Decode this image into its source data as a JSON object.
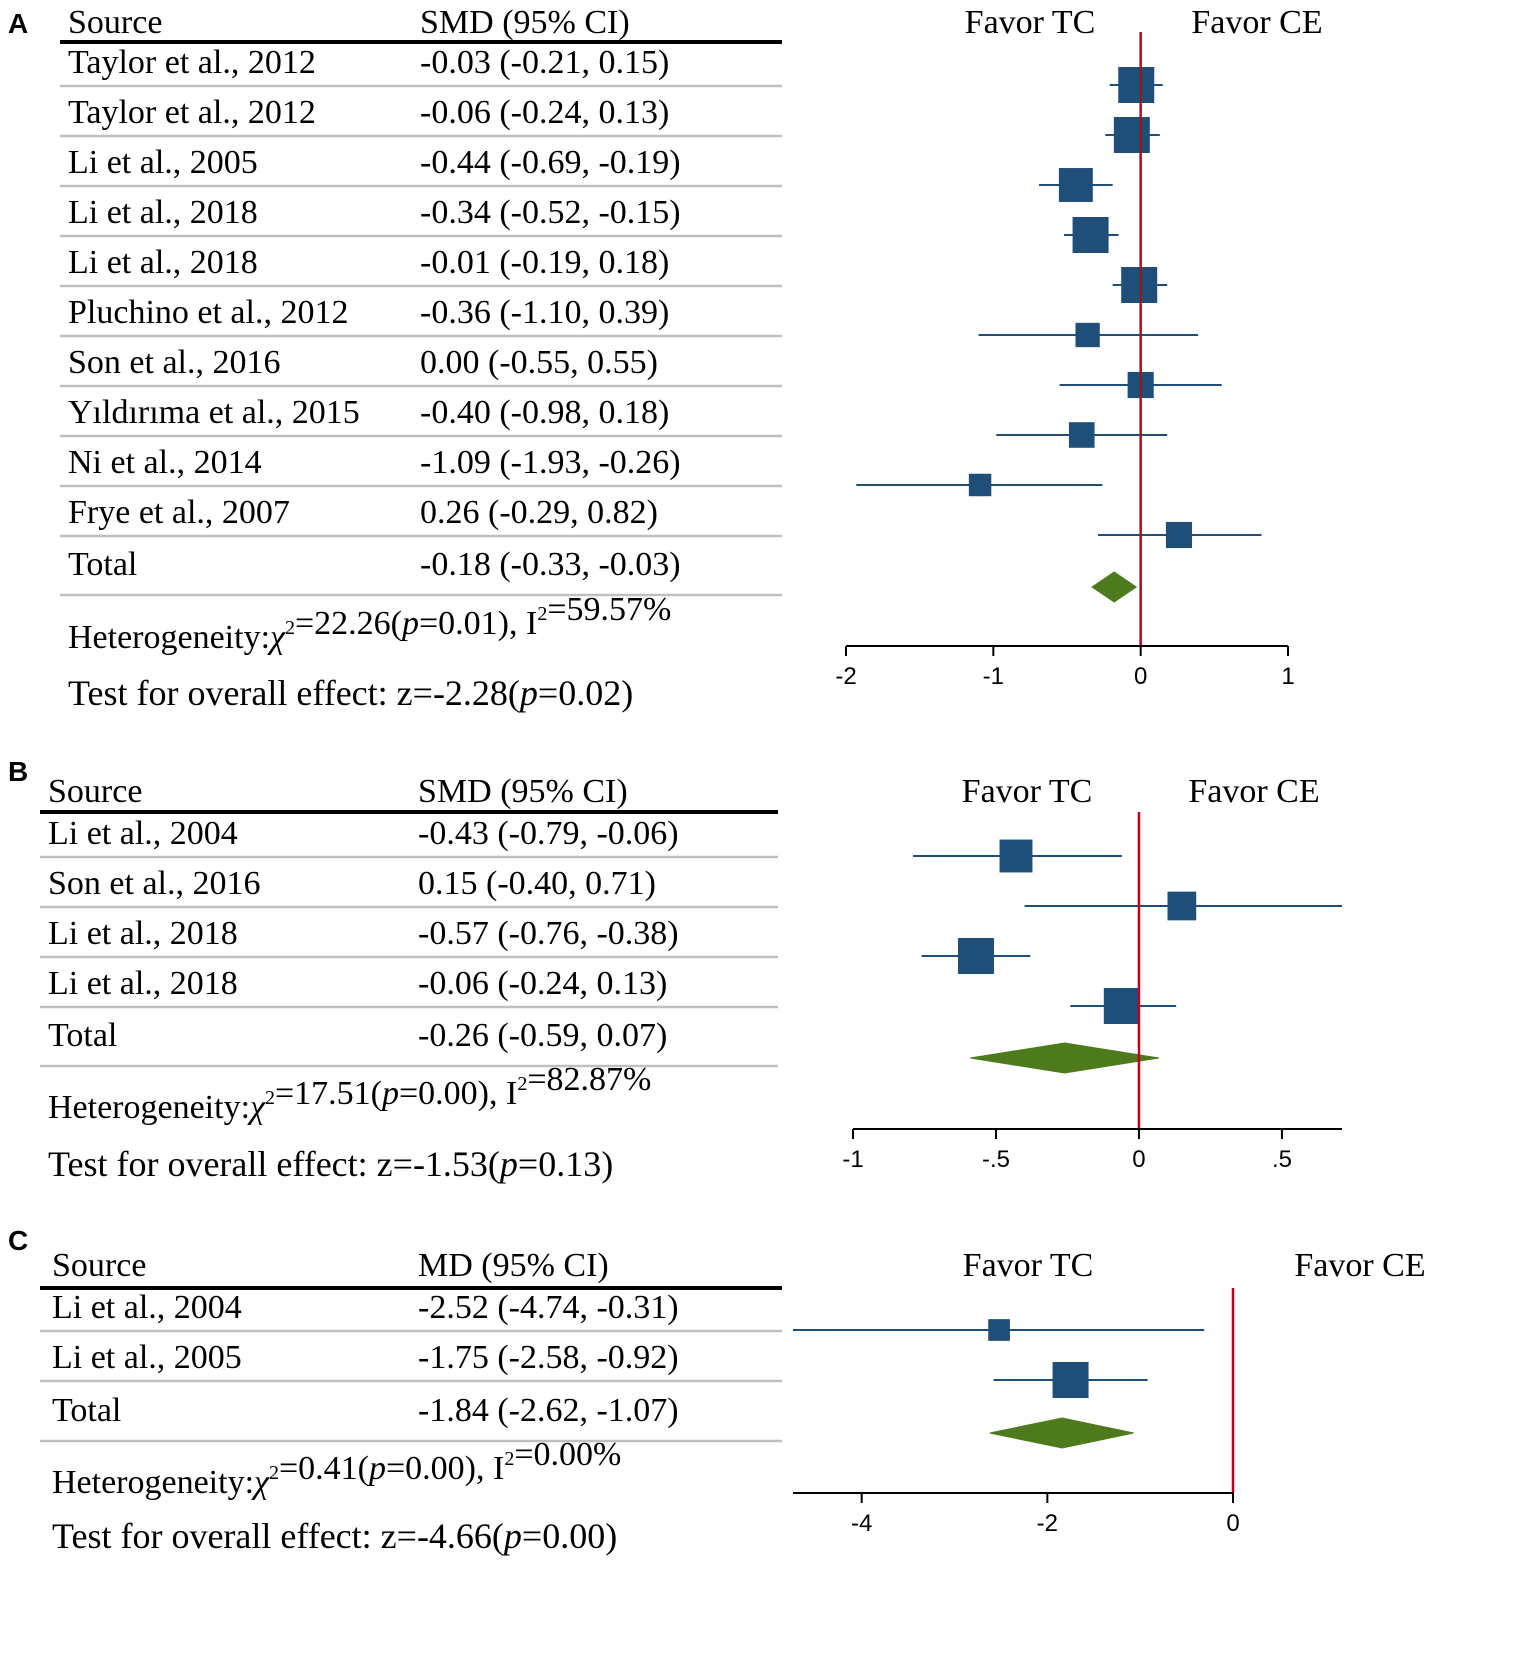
{
  "colors": {
    "marker": "#1F4E79",
    "diamond": "#4E7A1E",
    "null_line": "#C0001F",
    "rule": "#000000",
    "row_divider": "#BFBFBF"
  },
  "chart_data": [
    {
      "panel_label": "A",
      "type": "forest",
      "measure": "SMD",
      "columns": {
        "source": "Source",
        "estimate": "SMD (95% CI)"
      },
      "favor_left": "Favor TC",
      "favor_right": "Favor CE",
      "studies": [
        {
          "source": "Taylor et al., 2012",
          "ci_text": "-0.03 (-0.21, 0.15)",
          "est": -0.03,
          "lo": -0.21,
          "hi": 0.15,
          "weight": 1.0
        },
        {
          "source": "Taylor et al., 2012",
          "ci_text": "-0.06 (-0.24, 0.13)",
          "est": -0.06,
          "lo": -0.24,
          "hi": 0.13,
          "weight": 1.0
        },
        {
          "source": "Li et al., 2005",
          "ci_text": "-0.44 (-0.69, -0.19)",
          "est": -0.44,
          "lo": -0.69,
          "hi": -0.19,
          "weight": 0.92
        },
        {
          "source": "Li et al., 2018",
          "ci_text": "-0.34 (-0.52, -0.15)",
          "est": -0.34,
          "lo": -0.52,
          "hi": -0.15,
          "weight": 1.0
        },
        {
          "source": "Li et al., 2018",
          "ci_text": "-0.01 (-0.19, 0.18)",
          "est": -0.01,
          "lo": -0.19,
          "hi": 0.18,
          "weight": 1.0
        },
        {
          "source": "Pluchino et al., 2012",
          "ci_text": "-0.36 (-1.10, 0.39)",
          "est": -0.36,
          "lo": -1.1,
          "hi": 0.39,
          "weight": 0.55
        },
        {
          "source": "Son et al., 2016",
          "ci_text": "0.00 (-0.55, 0.55)",
          "est": 0.0,
          "lo": -0.55,
          "hi": 0.55,
          "weight": 0.62
        },
        {
          "source": "Yıldırıma et al., 2015",
          "ci_text": "-0.40 (-0.98, 0.18)",
          "est": -0.4,
          "lo": -0.98,
          "hi": 0.18,
          "weight": 0.6
        },
        {
          "source": "Ni et al., 2014",
          "ci_text": "-1.09 (-1.93, -0.26)",
          "est": -1.09,
          "lo": -1.93,
          "hi": -0.26,
          "weight": 0.48
        },
        {
          "source": "Frye et al., 2007",
          "ci_text": "0.26 (-0.29, 0.82)",
          "est": 0.26,
          "lo": -0.29,
          "hi": 0.82,
          "weight": 0.62
        }
      ],
      "total": {
        "source": "Total",
        "ci_text": "-0.18 (-0.33, -0.03)",
        "est": -0.18,
        "lo": -0.33,
        "hi": -0.03
      },
      "heterogeneity": {
        "prefix": "Heterogeneity:",
        "chi": "χ",
        "sup": "2",
        "mid": "=22.26(",
        "p_sym": "p",
        "p_val": "=0.01), I",
        "i2_val": "=59.57%"
      },
      "overall": {
        "prefix": "Test for overall effect: z=-2.28(",
        "p_sym": "p",
        "p_val": "=0.02)"
      },
      "xlim": [
        -2,
        1
      ],
      "ticks": [
        -2,
        -1,
        0,
        1
      ],
      "tick_labels": [
        "-2",
        "-1",
        "0",
        "1"
      ]
    },
    {
      "panel_label": "B",
      "type": "forest",
      "measure": "SMD",
      "columns": {
        "source": "Source",
        "estimate": "SMD (95% CI)"
      },
      "favor_left": "Favor TC",
      "favor_right": "Favor CE",
      "studies": [
        {
          "source": "Li et al., 2004",
          "ci_text": "-0.43 (-0.79, -0.06)",
          "est": -0.43,
          "lo": -0.79,
          "hi": -0.06,
          "weight": 0.88
        },
        {
          "source": "Son et al., 2016",
          "ci_text": "0.15 (-0.40, 0.71)",
          "est": 0.15,
          "lo": -0.4,
          "hi": 0.71,
          "weight": 0.72
        },
        {
          "source": "Li et al., 2018",
          "ci_text": "-0.57 (-0.76, -0.38)",
          "est": -0.57,
          "lo": -0.76,
          "hi": -0.38,
          "weight": 1.0
        },
        {
          "source": "Li et al., 2018",
          "ci_text": "-0.06 (-0.24, 0.13)",
          "est": -0.06,
          "lo": -0.24,
          "hi": 0.13,
          "weight": 1.0
        }
      ],
      "total": {
        "source": "Total",
        "ci_text": "-0.26 (-0.59, 0.07)",
        "est": -0.26,
        "lo": -0.59,
        "hi": 0.07
      },
      "heterogeneity": {
        "prefix": "Heterogeneity:",
        "chi": "χ",
        "sup": "2",
        "mid": "=17.51(",
        "p_sym": "p",
        "p_val": "=0.00), I",
        "i2_val": "=82.87%"
      },
      "overall": {
        "prefix": "Test for overall effect: z=-1.53(",
        "p_sym": "p",
        "p_val": "=0.13)"
      },
      "xlim": [
        -1,
        0.71
      ],
      "ticks": [
        -1,
        -0.5,
        0,
        0.5
      ],
      "tick_labels": [
        "-1",
        "-.5",
        "0",
        ".5"
      ]
    },
    {
      "panel_label": "C",
      "type": "forest",
      "measure": "MD",
      "columns": {
        "source": "Source",
        "estimate": "MD (95% CI)"
      },
      "favor_left": "Favor TC",
      "favor_right": "Favor CE",
      "studies": [
        {
          "source": "Li et al., 2004",
          "ci_text": "-2.52 (-4.74, -0.31)",
          "est": -2.52,
          "lo": -4.74,
          "hi": -0.31,
          "weight": 0.45
        },
        {
          "source": "Li et al., 2005",
          "ci_text": "-1.75 (-2.58, -0.92)",
          "est": -1.75,
          "lo": -2.58,
          "hi": -0.92,
          "weight": 1.0
        }
      ],
      "total": {
        "source": "Total",
        "ci_text": "-1.84 (-2.62, -1.07)",
        "est": -1.84,
        "lo": -2.62,
        "hi": -1.07
      },
      "heterogeneity": {
        "prefix": "Heterogeneity:",
        "chi": "χ",
        "sup": "2",
        "mid": "=0.41(",
        "p_sym": "p",
        "p_val": "=0.00), I",
        "i2_val": "=0.00%"
      },
      "overall": {
        "prefix": "Test for overall effect: z=-4.66(",
        "p_sym": "p",
        "p_val": "=0.00)"
      },
      "xlim": [
        -4.74,
        0
      ],
      "ticks": [
        -4,
        -2,
        0
      ],
      "tick_labels": [
        "-4",
        "-2",
        "0"
      ]
    }
  ]
}
